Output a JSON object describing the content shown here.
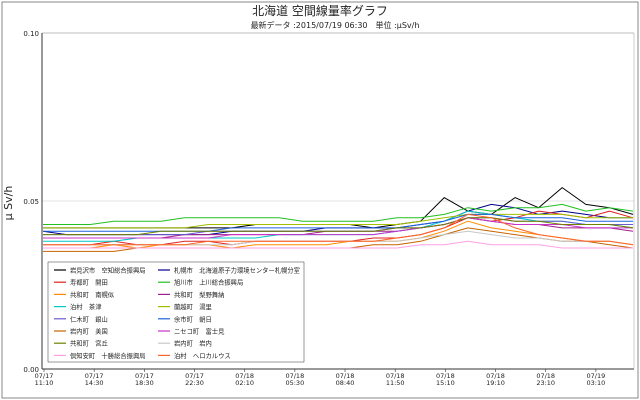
{
  "chart_data": {
    "type": "line",
    "title": "北海道 空間線量率グラフ",
    "subtitle": "最新データ :2015/07/19 06:30　単位 :μSv/h",
    "ylabel": "μ Sv/h",
    "xlabel": "",
    "ylim": [
      0.0,
      0.1
    ],
    "y_ticks": [
      "0.00",
      "0.05",
      "0.10"
    ],
    "x_ticks": [
      [
        "07/17",
        "11:10"
      ],
      [
        "07/17",
        "14:30"
      ],
      [
        "07/17",
        "18:30"
      ],
      [
        "07/17",
        "22:30"
      ],
      [
        "07/18",
        "02:10"
      ],
      [
        "07/18",
        "05:30"
      ],
      [
        "07/18",
        "08:40"
      ],
      [
        "07/18",
        "11:50"
      ],
      [
        "07/18",
        "15:10"
      ],
      [
        "07/18",
        "19:10"
      ],
      [
        "07/18",
        "23:10"
      ],
      [
        "07/19",
        "03:10"
      ]
    ],
    "grid": "horizontal",
    "legend_position": "bottom-left",
    "series": [
      {
        "name": "岩見沢市　空知総合振興局",
        "color": "#000000",
        "values": [
          0.042,
          0.042,
          0.042,
          0.042,
          0.042,
          0.042,
          0.042,
          0.042,
          0.042,
          0.043,
          0.043,
          0.043,
          0.043,
          0.043,
          0.042,
          0.043,
          0.044,
          0.051,
          0.047,
          0.046,
          0.051,
          0.048,
          0.054,
          0.049,
          0.048,
          0.046
        ]
      },
      {
        "name": "札幌市　北海道原子力環境センター札幌分室",
        "color": "#00008b",
        "values": [
          0.041,
          0.04,
          0.04,
          0.04,
          0.04,
          0.04,
          0.04,
          0.04,
          0.041,
          0.041,
          0.041,
          0.041,
          0.042,
          0.042,
          0.042,
          0.042,
          0.043,
          0.044,
          0.047,
          0.049,
          0.048,
          0.046,
          0.047,
          0.046,
          0.045,
          0.045
        ]
      },
      {
        "name": "寿都町　開田",
        "color": "#e02020",
        "values": [
          0.037,
          0.037,
          0.037,
          0.038,
          0.037,
          0.037,
          0.038,
          0.038,
          0.037,
          0.038,
          0.038,
          0.038,
          0.038,
          0.038,
          0.039,
          0.039,
          0.04,
          0.042,
          0.045,
          0.044,
          0.045,
          0.047,
          0.046,
          0.045,
          0.047,
          0.045
        ]
      },
      {
        "name": "旭川市　上川総合振興局",
        "color": "#22c022",
        "values": [
          0.043,
          0.043,
          0.043,
          0.044,
          0.044,
          0.044,
          0.045,
          0.045,
          0.045,
          0.045,
          0.045,
          0.044,
          0.044,
          0.044,
          0.044,
          0.045,
          0.045,
          0.046,
          0.048,
          0.047,
          0.048,
          0.048,
          0.049,
          0.047,
          0.048,
          0.047
        ]
      },
      {
        "name": "共和町　南幌似",
        "color": "#ff8c00",
        "values": [
          0.036,
          0.036,
          0.036,
          0.037,
          0.036,
          0.037,
          0.037,
          0.037,
          0.036,
          0.037,
          0.037,
          0.037,
          0.037,
          0.038,
          0.038,
          0.038,
          0.039,
          0.041,
          0.044,
          0.042,
          0.041,
          0.04,
          0.039,
          0.038,
          0.038,
          0.037
        ]
      },
      {
        "name": "共和町　梨野舞納",
        "color": "#a0208c",
        "values": [
          0.039,
          0.039,
          0.039,
          0.039,
          0.039,
          0.039,
          0.04,
          0.04,
          0.04,
          0.04,
          0.04,
          0.04,
          0.041,
          0.041,
          0.041,
          0.041,
          0.042,
          0.043,
          0.045,
          0.044,
          0.043,
          0.043,
          0.042,
          0.042,
          0.042,
          0.041
        ]
      },
      {
        "name": "泊村　茶津",
        "color": "#00c8c8",
        "values": [
          0.038,
          0.038,
          0.038,
          0.038,
          0.039,
          0.039,
          0.039,
          0.039,
          0.039,
          0.039,
          0.04,
          0.04,
          0.04,
          0.04,
          0.04,
          0.041,
          0.042,
          0.044,
          0.047,
          0.046,
          0.045,
          0.044,
          0.044,
          0.043,
          0.043,
          0.042
        ]
      },
      {
        "name": "蘭越町　湯里",
        "color": "#a0c000",
        "values": [
          0.042,
          0.042,
          0.042,
          0.042,
          0.042,
          0.042,
          0.042,
          0.043,
          0.043,
          0.043,
          0.043,
          0.043,
          0.043,
          0.043,
          0.043,
          0.043,
          0.044,
          0.045,
          0.046,
          0.046,
          0.046,
          0.046,
          0.046,
          0.045,
          0.045,
          0.045
        ]
      },
      {
        "name": "仁木町　銀山",
        "color": "#6a5acd",
        "values": [
          0.04,
          0.04,
          0.04,
          0.04,
          0.04,
          0.04,
          0.04,
          0.041,
          0.041,
          0.041,
          0.041,
          0.041,
          0.041,
          0.041,
          0.041,
          0.042,
          0.042,
          0.043,
          0.045,
          0.045,
          0.044,
          0.044,
          0.044,
          0.043,
          0.043,
          0.043
        ]
      },
      {
        "name": "余市町　朝日",
        "color": "#1e64dc",
        "values": [
          0.041,
          0.041,
          0.041,
          0.041,
          0.041,
          0.041,
          0.041,
          0.041,
          0.042,
          0.042,
          0.042,
          0.042,
          0.042,
          0.042,
          0.042,
          0.042,
          0.043,
          0.044,
          0.046,
          0.046,
          0.045,
          0.045,
          0.045,
          0.044,
          0.044,
          0.044
        ]
      },
      {
        "name": "岩内町　美国",
        "color": "#c86400",
        "values": [
          0.035,
          0.035,
          0.035,
          0.035,
          0.036,
          0.036,
          0.036,
          0.036,
          0.036,
          0.036,
          0.036,
          0.036,
          0.036,
          0.036,
          0.037,
          0.037,
          0.038,
          0.04,
          0.042,
          0.041,
          0.04,
          0.039,
          0.038,
          0.038,
          0.037,
          0.036
        ]
      },
      {
        "name": "ニセコ町　富士見",
        "color": "#c832c8",
        "values": [
          0.039,
          0.039,
          0.039,
          0.039,
          0.039,
          0.039,
          0.039,
          0.039,
          0.04,
          0.04,
          0.04,
          0.04,
          0.04,
          0.04,
          0.04,
          0.041,
          0.042,
          0.043,
          0.045,
          0.044,
          0.043,
          0.043,
          0.043,
          0.042,
          0.042,
          0.042
        ]
      },
      {
        "name": "共和町　宮丘",
        "color": "#708000",
        "values": [
          0.04,
          0.04,
          0.04,
          0.04,
          0.04,
          0.041,
          0.041,
          0.041,
          0.041,
          0.041,
          0.041,
          0.041,
          0.041,
          0.041,
          0.041,
          0.042,
          0.042,
          0.043,
          0.045,
          0.045,
          0.044,
          0.044,
          0.043,
          0.043,
          0.043,
          0.042
        ]
      },
      {
        "name": "岩内町　岩内",
        "color": "#c8c8c8",
        "values": [
          0.037,
          0.037,
          0.037,
          0.037,
          0.037,
          0.037,
          0.037,
          0.037,
          0.037,
          0.038,
          0.038,
          0.038,
          0.038,
          0.038,
          0.038,
          0.038,
          0.039,
          0.04,
          0.041,
          0.04,
          0.039,
          0.039,
          0.038,
          0.038,
          0.038,
          0.037
        ]
      },
      {
        "name": "倶知安町　十勝総合振興局",
        "color": "#ffa0e6",
        "values": [
          0.036,
          0.036,
          0.036,
          0.036,
          0.036,
          0.036,
          0.036,
          0.036,
          0.036,
          0.036,
          0.036,
          0.036,
          0.036,
          0.036,
          0.036,
          0.036,
          0.037,
          0.037,
          0.038,
          0.037,
          0.037,
          0.037,
          0.036,
          0.036,
          0.036,
          0.036
        ]
      },
      {
        "name": "泊村　ヘロカルウス",
        "color": "#ff6428",
        "values": [
          0.037,
          0.037,
          0.037,
          0.037,
          0.037,
          0.037,
          0.037,
          0.038,
          0.038,
          0.038,
          0.038,
          0.038,
          0.038,
          0.038,
          0.038,
          0.039,
          0.04,
          0.042,
          0.046,
          0.045,
          0.042,
          0.04,
          0.039,
          0.038,
          0.038,
          0.037
        ]
      }
    ]
  }
}
